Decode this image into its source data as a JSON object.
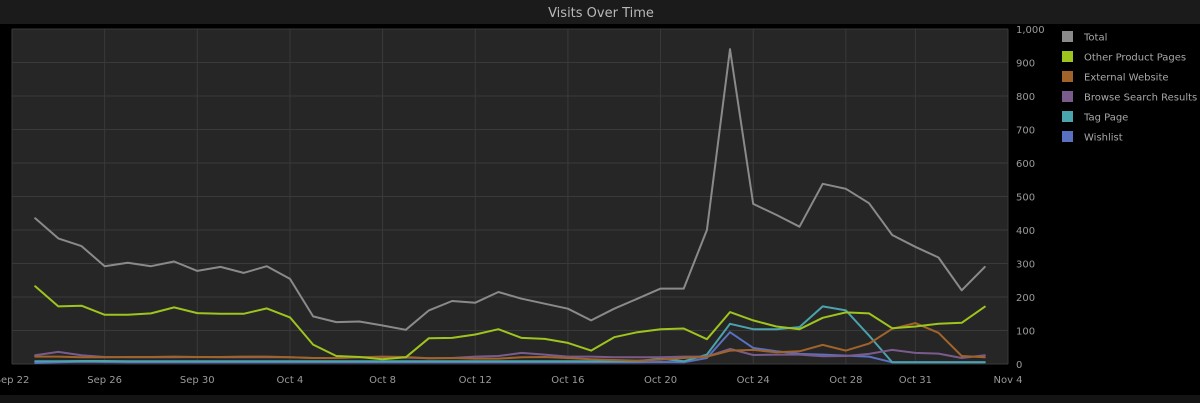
{
  "chart_data": {
    "type": "line",
    "title": "Visits Over Time",
    "xlabel": "",
    "ylabel": "",
    "y_axis_side": "right",
    "ylim": [
      0,
      1000
    ],
    "y_ticks": [
      0,
      100,
      200,
      300,
      400,
      500,
      600,
      700,
      800,
      900,
      1000
    ],
    "y_tick_labels": [
      "0",
      "100",
      "200",
      "300",
      "400",
      "500",
      "600",
      "700",
      "800",
      "900",
      "1,000"
    ],
    "xlim": [
      "2023-09-22",
      "2023-11-04"
    ],
    "x_ticks": [
      "2023-09-22",
      "2023-09-26",
      "2023-09-30",
      "2023-10-04",
      "2023-10-08",
      "2023-10-12",
      "2023-10-16",
      "2023-10-20",
      "2023-10-24",
      "2023-10-28",
      "2023-10-31",
      "2023-11-04"
    ],
    "x_tick_labels": [
      "Sep 22",
      "Sep 26",
      "Sep 30",
      "Oct 4",
      "Oct 8",
      "Oct 12",
      "Oct 16",
      "Oct 20",
      "Oct 24",
      "Oct 28",
      "Oct 31",
      "Nov 4"
    ],
    "grid": true,
    "legend_position": "right",
    "x": [
      "2023-09-23",
      "2023-09-24",
      "2023-09-25",
      "2023-09-26",
      "2023-09-27",
      "2023-09-28",
      "2023-09-29",
      "2023-09-30",
      "2023-10-01",
      "2023-10-02",
      "2023-10-03",
      "2023-10-04",
      "2023-10-05",
      "2023-10-06",
      "2023-10-07",
      "2023-10-08",
      "2023-10-09",
      "2023-10-10",
      "2023-10-11",
      "2023-10-12",
      "2023-10-13",
      "2023-10-14",
      "2023-10-15",
      "2023-10-16",
      "2023-10-17",
      "2023-10-18",
      "2023-10-19",
      "2023-10-20",
      "2023-10-21",
      "2023-10-22",
      "2023-10-23",
      "2023-10-24",
      "2023-10-25",
      "2023-10-26",
      "2023-10-27",
      "2023-10-28",
      "2023-10-29",
      "2023-10-30",
      "2023-10-31",
      "2023-11-01",
      "2023-11-02",
      "2023-11-03"
    ],
    "series": [
      {
        "name": "Total",
        "color": "#8a8a8a",
        "values": [
          435,
          375,
          352,
          292,
          302,
          292,
          306,
          278,
          290,
          272,
          292,
          254,
          142,
          125,
          127,
          115,
          102,
          160,
          188,
          183,
          215,
          195,
          180,
          165,
          130,
          165,
          195,
          225,
          225,
          400,
          940,
          478,
          445,
          410,
          538,
          523,
          480,
          385,
          350,
          318,
          220,
          290
        ]
      },
      {
        "name": "Other Product Pages",
        "color": "#9ec41e",
        "values": [
          232,
          172,
          174,
          147,
          147,
          151,
          169,
          152,
          150,
          150,
          166,
          139,
          58,
          24,
          21,
          14,
          20,
          77,
          78,
          88,
          104,
          78,
          75,
          63,
          40,
          80,
          95,
          104,
          106,
          74,
          155,
          130,
          112,
          104,
          138,
          154,
          151,
          107,
          112,
          120,
          123,
          171
        ]
      },
      {
        "name": "External Website",
        "color": "#a0642a",
        "values": [
          22,
          22,
          20,
          20,
          21,
          21,
          22,
          21,
          21,
          22,
          22,
          20,
          18,
          18,
          20,
          22,
          21,
          17,
          18,
          16,
          16,
          20,
          21,
          18,
          14,
          12,
          10,
          13,
          18,
          22,
          40,
          42,
          35,
          38,
          57,
          40,
          61,
          105,
          122,
          93,
          24,
          20
        ]
      },
      {
        "name": "Browse Search Results",
        "color": "#7a5c8c",
        "values": [
          26,
          36,
          26,
          21,
          20,
          20,
          20,
          21,
          20,
          20,
          20,
          20,
          18,
          18,
          20,
          20,
          19,
          17,
          18,
          22,
          24,
          33,
          28,
          22,
          22,
          20,
          20,
          20,
          22,
          22,
          45,
          27,
          28,
          28,
          23,
          24,
          30,
          42,
          33,
          31,
          18,
          26
        ]
      },
      {
        "name": "Tag Page",
        "color": "#4aa3ad",
        "values": [
          8,
          8,
          9,
          9,
          8,
          8,
          8,
          8,
          8,
          8,
          8,
          8,
          8,
          8,
          8,
          8,
          8,
          8,
          8,
          8,
          8,
          8,
          8,
          8,
          8,
          8,
          8,
          16,
          8,
          28,
          120,
          104,
          104,
          110,
          172,
          160,
          85,
          5,
          5,
          5,
          5,
          5
        ]
      },
      {
        "name": "Wishlist",
        "color": "#5a70c0",
        "values": [
          3,
          5,
          7,
          6,
          5,
          5,
          5,
          5,
          5,
          5,
          5,
          5,
          5,
          5,
          5,
          5,
          5,
          5,
          5,
          5,
          5,
          5,
          5,
          5,
          5,
          5,
          5,
          6,
          5,
          18,
          95,
          48,
          38,
          30,
          28,
          25,
          22,
          5,
          5,
          5,
          5,
          5
        ]
      }
    ]
  }
}
